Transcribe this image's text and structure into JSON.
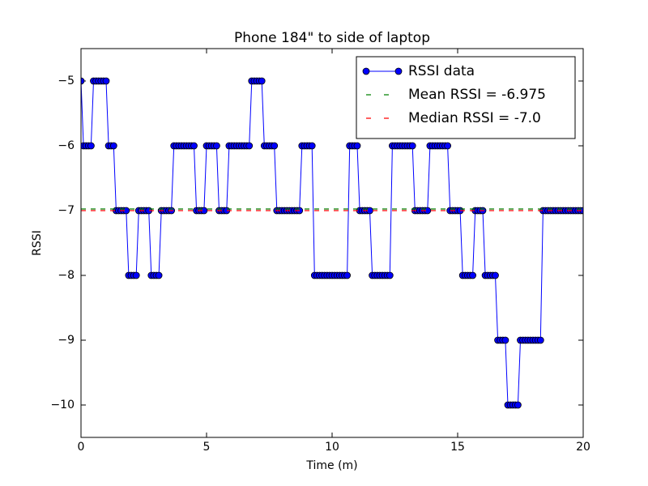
{
  "chart_data": {
    "type": "line",
    "title": "Phone 184\" to side of laptop",
    "x_label": "Time (m)",
    "y_label": "RSSI",
    "x": [
      0,
      0.1,
      0.2,
      0.3,
      0.4,
      0.5,
      0.6,
      0.7,
      0.8,
      0.9,
      1,
      1.1,
      1.2,
      1.3,
      1.4,
      1.5,
      1.6,
      1.7,
      1.8,
      1.9,
      2,
      2.1,
      2.2,
      2.3,
      2.4,
      2.5,
      2.6,
      2.7,
      2.8,
      2.9,
      3,
      3.1,
      3.2,
      3.3,
      3.4,
      3.5,
      3.6,
      3.7,
      3.8,
      3.9,
      4,
      4.1,
      4.2,
      4.3,
      4.4,
      4.5,
      4.6,
      4.7,
      4.8,
      4.9,
      5,
      5.1,
      5.2,
      5.3,
      5.4,
      5.5,
      5.6,
      5.7,
      5.8,
      5.9,
      6,
      6.1,
      6.2,
      6.3,
      6.4,
      6.5,
      6.6,
      6.7,
      6.8,
      6.9,
      7,
      7.1,
      7.2,
      7.3,
      7.4,
      7.5,
      7.6,
      7.7,
      7.8,
      7.9,
      8,
      8.1,
      8.2,
      8.3,
      8.4,
      8.5,
      8.6,
      8.7,
      8.8,
      8.9,
      9,
      9.1,
      9.2,
      9.3,
      9.4,
      9.5,
      9.6,
      9.7,
      9.8,
      9.9,
      10,
      10.1,
      10.2,
      10.3,
      10.4,
      10.5,
      10.6,
      10.7,
      10.8,
      10.9,
      11,
      11.1,
      11.2,
      11.3,
      11.4,
      11.5,
      11.6,
      11.7,
      11.8,
      11.9,
      12,
      12.1,
      12.2,
      12.3,
      12.4,
      12.5,
      12.6,
      12.7,
      12.8,
      12.9,
      13,
      13.1,
      13.2,
      13.3,
      13.4,
      13.5,
      13.6,
      13.7,
      13.8,
      13.9,
      14,
      14.1,
      14.2,
      14.3,
      14.4,
      14.5,
      14.6,
      14.7,
      14.8,
      14.9,
      15,
      15.1,
      15.2,
      15.3,
      15.4,
      15.5,
      15.6,
      15.7,
      15.8,
      15.9,
      16,
      16.1,
      16.2,
      16.3,
      16.4,
      16.5,
      16.6,
      16.7,
      16.8,
      16.9,
      17,
      17.1,
      17.2,
      17.3,
      17.4,
      17.5,
      17.6,
      17.7,
      17.8,
      17.9,
      18,
      18.1,
      18.2,
      18.3,
      18.4,
      18.5,
      18.6,
      18.7,
      18.8,
      18.9,
      19,
      19.1,
      19.2,
      19.3,
      19.4,
      19.5,
      19.6,
      19.7,
      19.8,
      19.9,
      20
    ],
    "series": [
      {
        "name": "RSSI data",
        "color": "#0000ff",
        "values": [
          -5,
          -6,
          -6,
          -6,
          -6,
          -5,
          -5,
          -5,
          -5,
          -5,
          -5,
          -6,
          -6,
          -6,
          -7,
          -7,
          -7,
          -7,
          -7,
          -8,
          -8,
          -8,
          -8,
          -7,
          -7,
          -7,
          -7,
          -7,
          -8,
          -8,
          -8,
          -8,
          -7,
          -7,
          -7,
          -7,
          -7,
          -6,
          -6,
          -6,
          -6,
          -6,
          -6,
          -6,
          -6,
          -6,
          -7,
          -7,
          -7,
          -7,
          -6,
          -6,
          -6,
          -6,
          -6,
          -7,
          -7,
          -7,
          -7,
          -6,
          -6,
          -6,
          -6,
          -6,
          -6,
          -6,
          -6,
          -6,
          -5,
          -5,
          -5,
          -5,
          -5,
          -6,
          -6,
          -6,
          -6,
          -6,
          -7,
          -7,
          -7,
          -7,
          -7,
          -7,
          -7,
          -7,
          -7,
          -7,
          -6,
          -6,
          -6,
          -6,
          -6,
          -8,
          -8,
          -8,
          -8,
          -8,
          -8,
          -8,
          -8,
          -8,
          -8,
          -8,
          -8,
          -8,
          -8,
          -6,
          -6,
          -6,
          -6,
          -7,
          -7,
          -7,
          -7,
          -7,
          -8,
          -8,
          -8,
          -8,
          -8,
          -8,
          -8,
          -8,
          -6,
          -6,
          -6,
          -6,
          -6,
          -6,
          -6,
          -6,
          -6,
          -7,
          -7,
          -7,
          -7,
          -7,
          -7,
          -6,
          -6,
          -6,
          -6,
          -6,
          -6,
          -6,
          -6,
          -7,
          -7,
          -7,
          -7,
          -7,
          -8,
          -8,
          -8,
          -8,
          -8,
          -7,
          -7,
          -7,
          -7,
          -8,
          -8,
          -8,
          -8,
          -8,
          -9,
          -9,
          -9,
          -9,
          -10,
          -10,
          -10,
          -10,
          -10,
          -9,
          -9,
          -9,
          -9,
          -9,
          -9,
          -9,
          -9,
          -9,
          -7,
          -7,
          -7,
          -7,
          -7,
          -7,
          -7,
          -7,
          -7,
          -7,
          -7,
          -7,
          -7,
          -7,
          -7,
          -7,
          -7
        ]
      }
    ],
    "hlines": [
      {
        "name": "Mean RSSI = -6.975",
        "value": -6.975,
        "color": "#008000"
      },
      {
        "name": "Median RSSI = -7.0",
        "value": -7.0,
        "color": "#ff0000"
      }
    ],
    "xlim": [
      0,
      20
    ],
    "ylim": [
      -10.5,
      -4.5
    ],
    "xticks": [
      0,
      5,
      10,
      15,
      20
    ],
    "yticks": [
      {
        "value": -10,
        "label": "−10"
      },
      {
        "value": -9,
        "label": "−9"
      },
      {
        "value": -8,
        "label": "−8"
      },
      {
        "value": -7,
        "label": "−7"
      },
      {
        "value": -6,
        "label": "−6"
      },
      {
        "value": -5,
        "label": "−5"
      }
    ],
    "legend": "upper right"
  }
}
